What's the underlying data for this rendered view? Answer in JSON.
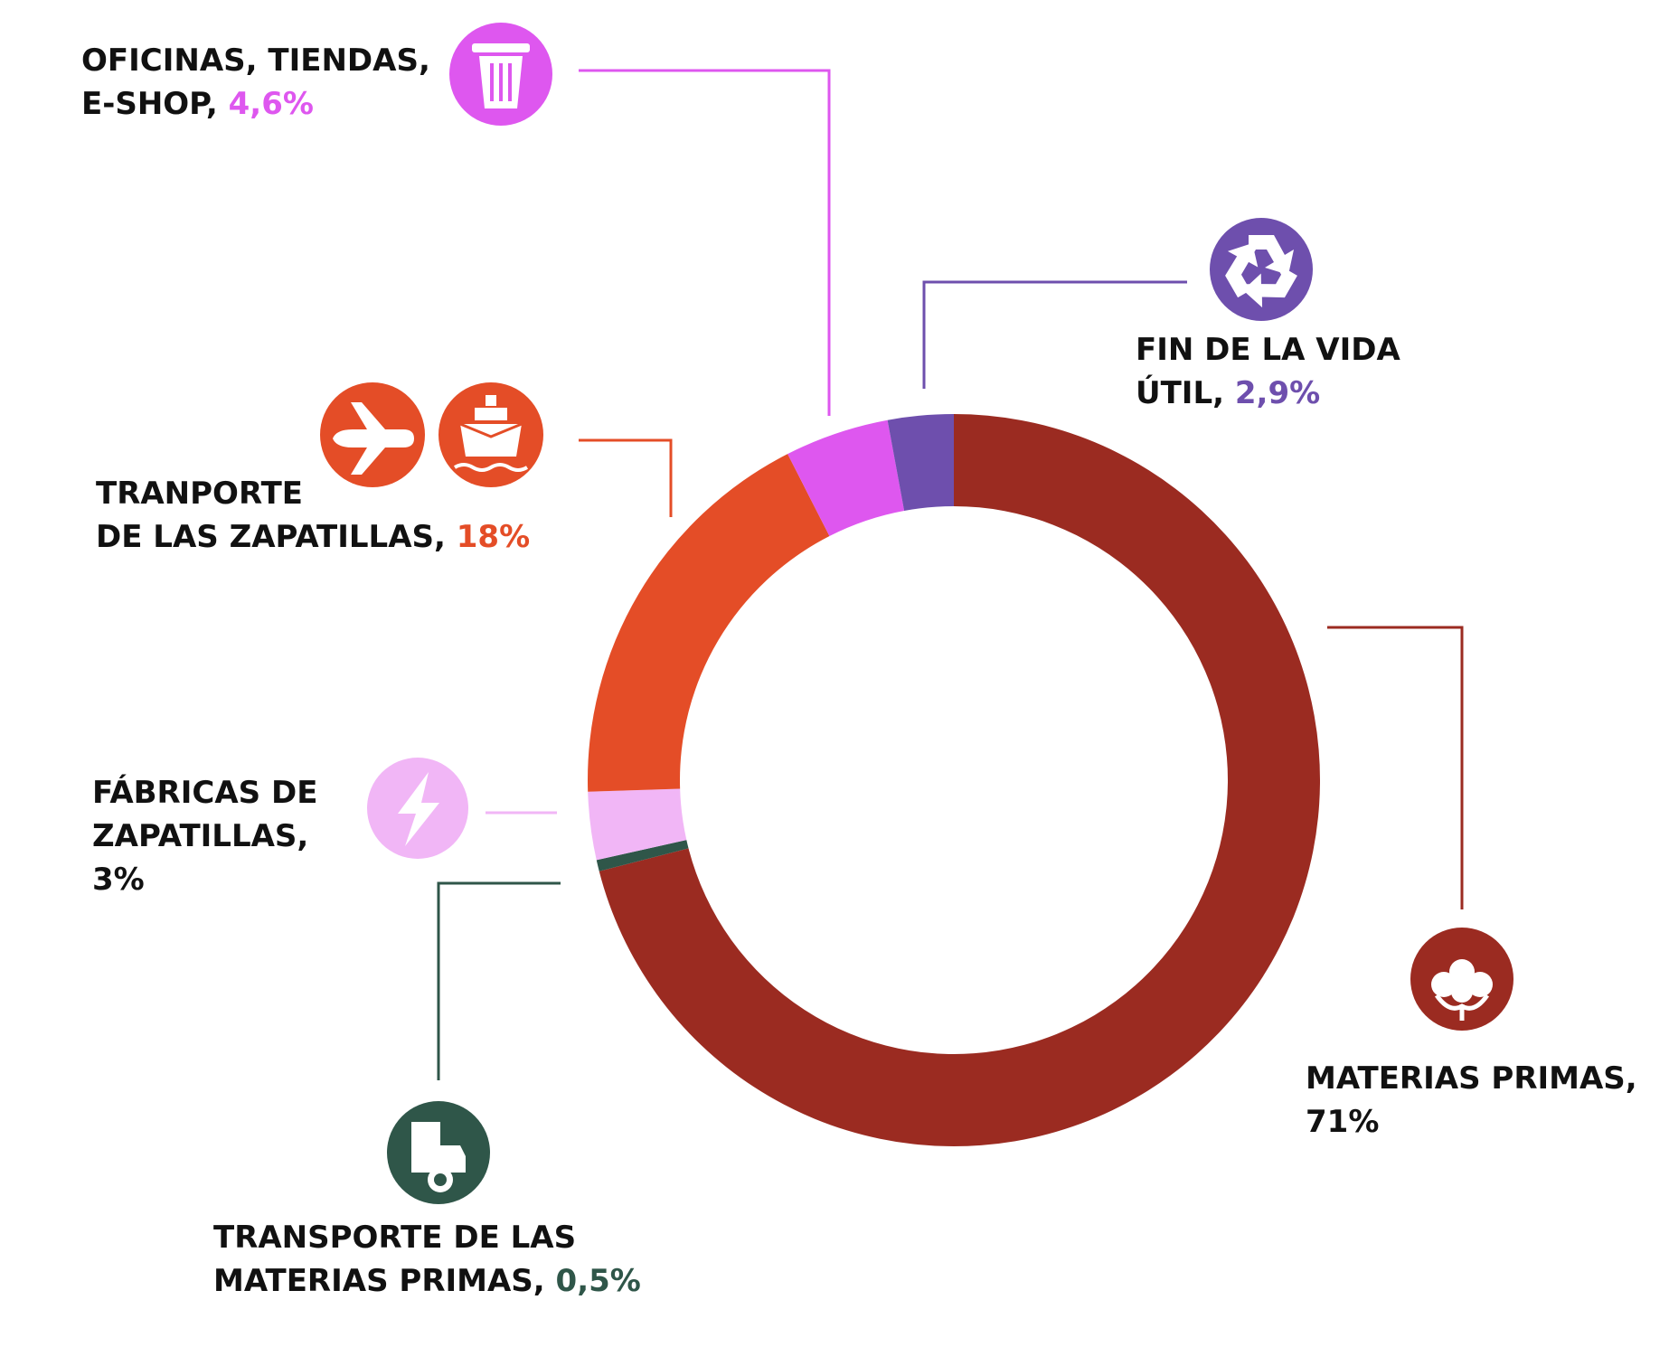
{
  "chart_data": {
    "type": "pie",
    "variant": "donut",
    "title": "",
    "slices": [
      {
        "name": "MATERIAS PRIMAS",
        "label_lines": [
          "MATERIAS PRIMAS,"
        ],
        "value_text": "71%",
        "value": 71,
        "color": "#9B2B21",
        "icon": "cotton-icon"
      },
      {
        "name": "TRANSPORTE DE LAS MATERIAS PRIMAS",
        "label_lines": [
          "TRANSPORTE DE LAS",
          "MATERIAS PRIMAS,"
        ],
        "value_text": "0,5%",
        "value": 0.5,
        "color": "#2F5649",
        "icon": "truck-icon"
      },
      {
        "name": "FÁBRICAS DE ZAPATILLAS",
        "label_lines": [
          "FÁBRICAS DE",
          "ZAPATILLAS,"
        ],
        "value_text": "3%",
        "value": 3,
        "color": "#F1B6F6",
        "icon": "lightning-icon"
      },
      {
        "name": "TRANPORTE DE LAS ZAPATILLAS",
        "label_lines": [
          "TRANPORTE",
          "DE LAS ZAPATILLAS,"
        ],
        "value_text": "18%",
        "value": 18,
        "color": "#E44D27",
        "icon": "airplane-icon"
      },
      {
        "name": "OFICINAS, TIENDAS, E-SHOP",
        "label_lines": [
          "OFICINAS, TIENDAS,",
          "E-SHOP,"
        ],
        "value_text": "4,6%",
        "value": 4.6,
        "color": "#DE57EF",
        "icon": "trash-icon"
      },
      {
        "name": "FIN DE LA VIDA ÚTIL",
        "label_lines": [
          "FIN DE LA VIDA",
          "ÚTIL,"
        ],
        "value_text": "2,9%",
        "value": 2.9,
        "color": "#6E4FAD",
        "icon": "recycle-icon"
      }
    ],
    "extra_icons": [
      {
        "slice": "TRANPORTE DE LAS ZAPATILLAS",
        "icon": "ship-icon",
        "color": "#E44D27"
      }
    ],
    "legend": "none"
  }
}
